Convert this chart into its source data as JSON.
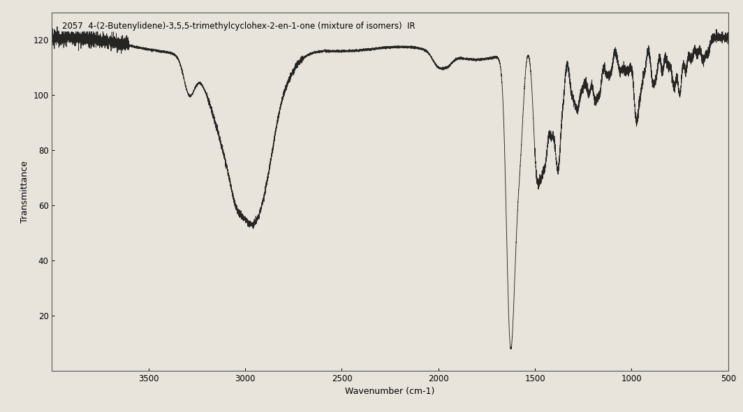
{
  "title": "2057  4-(2-Butenylidene)-3,5,5-trimethylcyclohex-2-en-1-one (mixture of isomers)  IR",
  "xlabel": "Wavenumber (cm-1)",
  "ylabel": "Transmittance",
  "xmin": 4000,
  "xmax": 500,
  "ymin": 0,
  "ymax": 130,
  "yticks": [
    20,
    40,
    60,
    80,
    100,
    120
  ],
  "xticks": [
    3500,
    3000,
    2500,
    2000,
    1500,
    1000,
    500
  ],
  "background_color": "#e8e4dc",
  "line_color": "#1a1a1a",
  "title_fontsize": 8.5,
  "axis_fontsize": 9,
  "tick_fontsize": 8.5
}
